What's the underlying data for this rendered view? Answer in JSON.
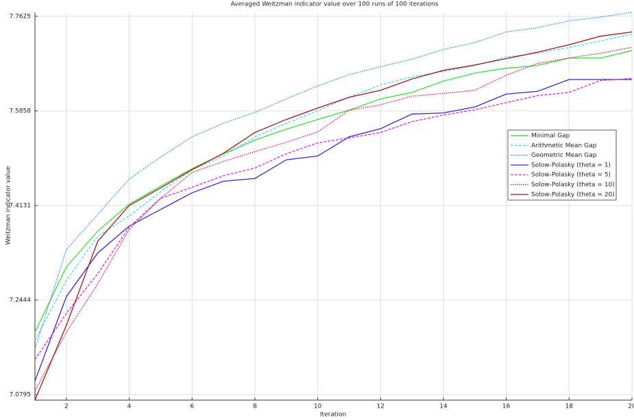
{
  "chart_data": {
    "type": "line",
    "title": "Averaged Weitzman indicator value over 100 runs of 100 iterations",
    "x_label": "Iteration",
    "y_label": "Weitzman indicator value",
    "x": [
      1,
      2,
      3,
      4,
      5,
      6,
      7,
      8,
      9,
      10,
      11,
      12,
      13,
      14,
      15,
      16,
      17,
      18,
      19,
      20
    ],
    "xlim": [
      1,
      20
    ],
    "xticks": [
      2,
      4,
      6,
      8,
      10,
      12,
      14,
      16,
      18,
      20
    ],
    "ylim": [
      7.07,
      7.77
    ],
    "yticks": [
      7.0795,
      7.2444,
      7.4131,
      7.5858,
      7.7625
    ],
    "yscale": "log",
    "grid": true,
    "legend": "center right",
    "series": [
      {
        "name": "Minimal Gap",
        "color": "#33dd33",
        "linestyle": "solid",
        "values": [
          7.188,
          7.303,
          7.367,
          7.4156,
          7.448,
          7.48,
          7.507,
          7.532,
          7.552,
          7.57,
          7.587,
          7.608,
          7.62,
          7.641,
          7.656,
          7.665,
          7.67,
          7.684,
          7.684,
          7.698
        ]
      },
      {
        "name": "Arithmetic Mean Gap",
        "color": "#44dddd",
        "linestyle": "dashed",
        "values": [
          7.173,
          7.279,
          7.358,
          7.394,
          7.438,
          7.478,
          7.503,
          7.538,
          7.563,
          7.586,
          7.611,
          7.634,
          7.649,
          7.659,
          7.67,
          7.686,
          7.693,
          7.704,
          7.716,
          7.729
        ]
      },
      {
        "name": "Geometric Mean Gap",
        "color": "#3388dd",
        "linestyle": "dotted",
        "values": [
          7.159,
          7.334,
          7.397,
          7.461,
          7.501,
          7.538,
          7.563,
          7.583,
          7.608,
          7.632,
          7.653,
          7.668,
          7.682,
          7.7,
          7.713,
          7.733,
          7.741,
          7.754,
          7.761,
          7.77
        ]
      },
      {
        "name": "Solow-Polasky (theta = 1)",
        "color": "#3322dd",
        "linestyle": "solid",
        "values": [
          7.103,
          7.2505,
          7.328,
          7.376,
          7.406,
          7.436,
          7.457,
          7.462,
          7.496,
          7.503,
          7.538,
          7.553,
          7.58,
          7.582,
          7.593,
          7.617,
          7.622,
          7.644,
          7.644,
          7.644
        ]
      },
      {
        "name": "Solow-Polasky (theta = 5)",
        "color": "#dd22dd",
        "linestyle": "dashed",
        "values": [
          7.14,
          7.221,
          7.291,
          7.374,
          7.426,
          7.446,
          7.467,
          7.481,
          7.507,
          7.527,
          7.536,
          7.546,
          7.566,
          7.578,
          7.588,
          7.601,
          7.614,
          7.62,
          7.642,
          7.646
        ]
      },
      {
        "name": "Solow-Polasky (theta = 10)",
        "color": "#cc1166",
        "linestyle": "dotted",
        "values": [
          7.086,
          7.188,
          7.273,
          7.37,
          7.426,
          7.473,
          7.493,
          7.511,
          7.528,
          7.547,
          7.587,
          7.597,
          7.613,
          7.618,
          7.624,
          7.652,
          7.674,
          7.684,
          7.693,
          7.704
        ]
      },
      {
        "name": "Solow-Polasky (theta = 20)",
        "color": "#aa1111",
        "linestyle": "solid",
        "values": [
          7.07,
          7.2,
          7.349,
          7.413,
          7.445,
          7.478,
          7.508,
          7.546,
          7.57,
          7.591,
          7.611,
          7.624,
          7.645,
          7.661,
          7.671,
          7.683,
          7.695,
          7.709,
          7.725,
          7.733
        ]
      }
    ]
  }
}
